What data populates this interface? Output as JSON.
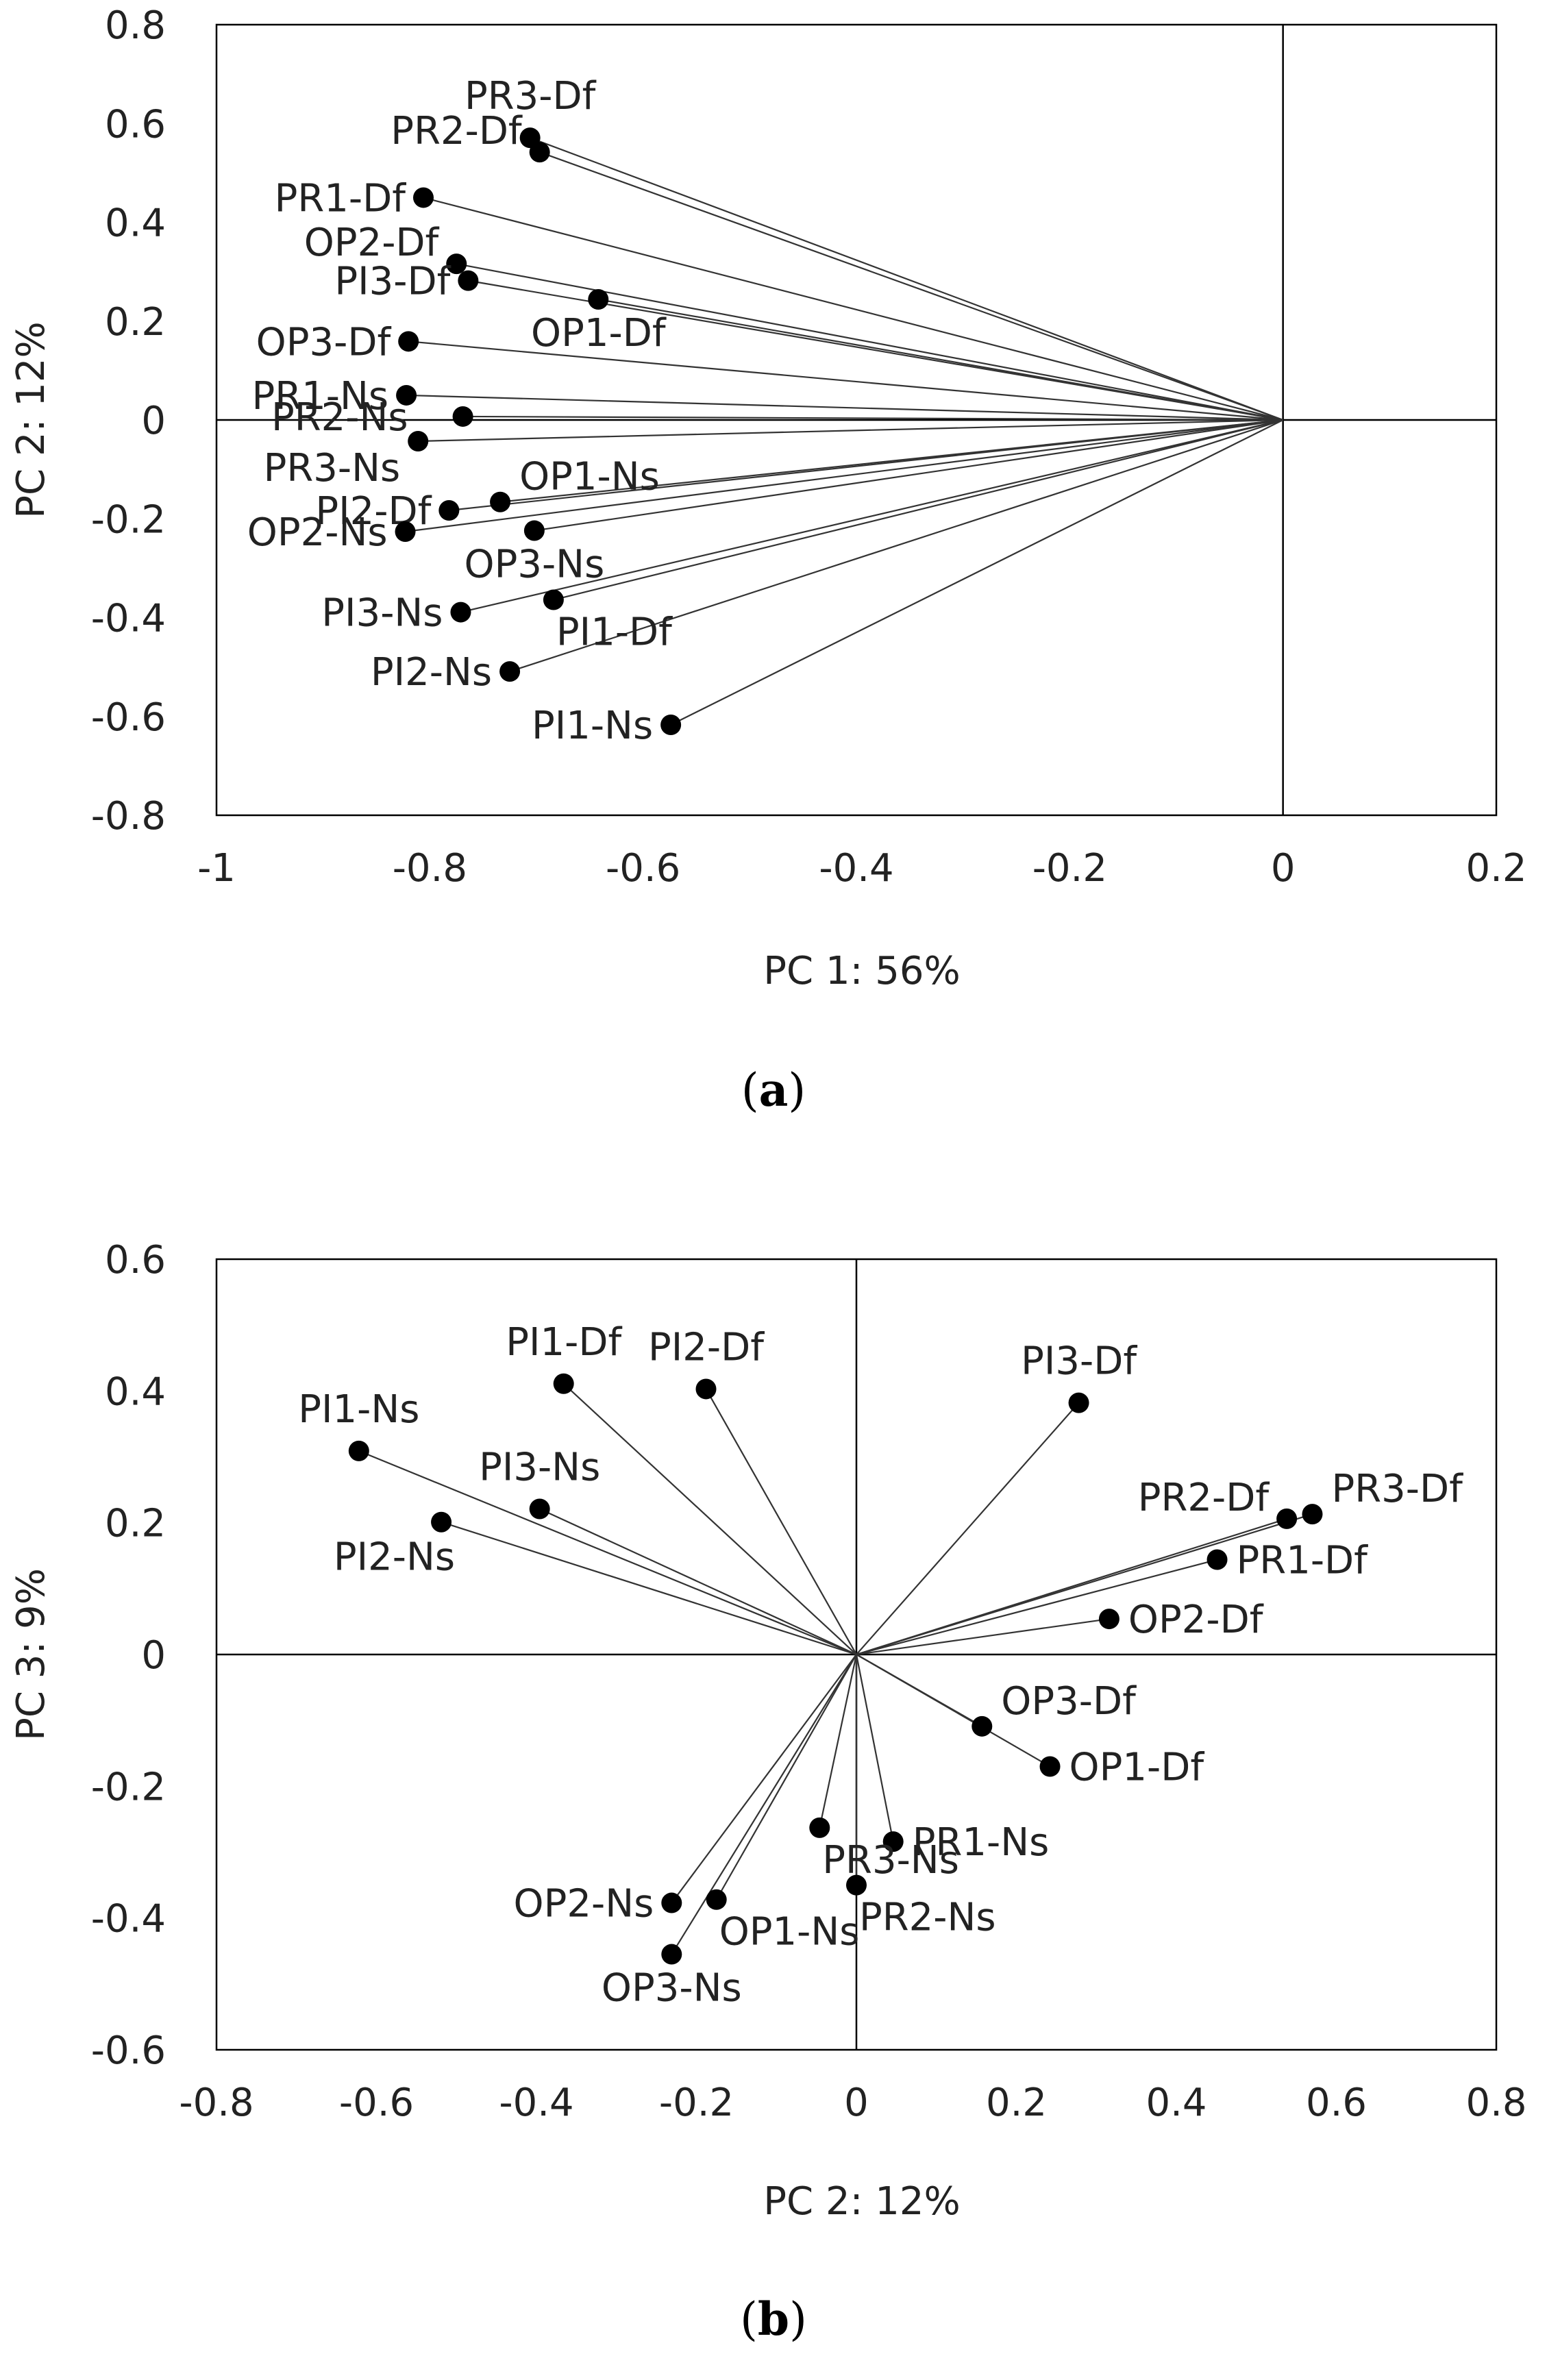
{
  "chart_data": [
    {
      "type": "scatter",
      "panel_label": "a",
      "xlabel": "PC 1: 56%",
      "ylabel": "PC 2: 12%",
      "xlim": [
        -1,
        0.2
      ],
      "ylim": [
        -0.8,
        0.8
      ],
      "xticks": [
        -1,
        -0.8,
        -0.6,
        -0.4,
        -0.2,
        0,
        0.2
      ],
      "xtick_labels": [
        "-1",
        "-0.8",
        "-0.6",
        "-0.4",
        "-0.2",
        "0",
        "0.2"
      ],
      "yticks": [
        0.8,
        0.6,
        0.4,
        0.2,
        0,
        -0.2,
        -0.4,
        -0.6,
        -0.8
      ],
      "ytick_labels": [
        "0.8",
        "0.6",
        "0.4",
        "0.2",
        "0",
        "-0.2",
        "-0.4",
        "-0.6",
        "-0.8"
      ],
      "points": [
        {
          "label": "PR3-Df",
          "x": -0.706,
          "y": 0.571,
          "label_pos": "above"
        },
        {
          "label": "PR2-Df",
          "x": -0.697,
          "y": 0.542,
          "label_pos": "left-up"
        },
        {
          "label": "PR1-Df",
          "x": -0.806,
          "y": 0.45,
          "label_pos": "left"
        },
        {
          "label": "OP2-Df",
          "x": -0.775,
          "y": 0.316,
          "label_pos": "left-up"
        },
        {
          "label": "PI3-Df",
          "x": -0.764,
          "y": 0.282,
          "label_pos": "left"
        },
        {
          "label": "OP1-Df",
          "x": -0.642,
          "y": 0.244,
          "label_pos": "below"
        },
        {
          "label": "OP3-Df",
          "x": -0.82,
          "y": 0.159,
          "label_pos": "left"
        },
        {
          "label": "PR1-Ns",
          "x": -0.822,
          "y": 0.05,
          "label_pos": "left"
        },
        {
          "label": "PR2-Ns",
          "x": -0.769,
          "y": 0.007,
          "label_pos": "left-far"
        },
        {
          "label": "PR3-Ns",
          "x": -0.811,
          "y": -0.043,
          "label_pos": "left-down"
        },
        {
          "label": "OP1-Ns",
          "x": -0.734,
          "y": -0.166,
          "label_pos": "right-up"
        },
        {
          "label": "PI2-Df",
          "x": -0.782,
          "y": -0.183,
          "label_pos": "left"
        },
        {
          "label": "OP2-Ns",
          "x": -0.823,
          "y": -0.226,
          "label_pos": "left"
        },
        {
          "label": "OP3-Ns",
          "x": -0.702,
          "y": -0.224,
          "label_pos": "below"
        },
        {
          "label": "PI1-Df",
          "x": -0.684,
          "y": -0.364,
          "label_pos": "below-right"
        },
        {
          "label": "PI3-Ns",
          "x": -0.771,
          "y": -0.389,
          "label_pos": "left"
        },
        {
          "label": "PI2-Ns",
          "x": -0.725,
          "y": -0.509,
          "label_pos": "left"
        },
        {
          "label": "PI1-Ns",
          "x": -0.574,
          "y": -0.617,
          "label_pos": "left"
        }
      ]
    },
    {
      "type": "scatter",
      "panel_label": "b",
      "xlabel": "PC 2: 12%",
      "ylabel": "PC 3: 9%",
      "xlim": [
        -0.8,
        0.8
      ],
      "ylim": [
        -0.6,
        0.6
      ],
      "xticks": [
        -0.8,
        -0.6,
        -0.4,
        -0.2,
        0,
        0.2,
        0.4,
        0.6,
        0.8
      ],
      "xtick_labels": [
        "-0.8",
        "-0.6",
        "-0.4",
        "-0.2",
        "0",
        "0.2",
        "0.4",
        "0.6",
        "0.8"
      ],
      "yticks": [
        0.6,
        0.4,
        0.2,
        0,
        -0.2,
        -0.4,
        -0.6
      ],
      "ytick_labels": [
        "0.6",
        "0.4",
        "0.2",
        "0",
        "-0.2",
        "-0.4",
        "-0.6"
      ],
      "points": [
        {
          "label": "PI1-Df",
          "x": -0.366,
          "y": 0.411,
          "label_pos": "above"
        },
        {
          "label": "PI2-Df",
          "x": -0.188,
          "y": 0.403,
          "label_pos": "above"
        },
        {
          "label": "PI3-Df",
          "x": 0.278,
          "y": 0.382,
          "label_pos": "above"
        },
        {
          "label": "PI1-Ns",
          "x": -0.622,
          "y": 0.309,
          "label_pos": "above"
        },
        {
          "label": "PI3-Ns",
          "x": -0.396,
          "y": 0.221,
          "label_pos": "above"
        },
        {
          "label": "PI2-Ns",
          "x": -0.519,
          "y": 0.201,
          "label_pos": "below-left"
        },
        {
          "label": "PR3-Df",
          "x": 0.57,
          "y": 0.213,
          "label_pos": "right-up"
        },
        {
          "label": "PR2-Df",
          "x": 0.538,
          "y": 0.206,
          "label_pos": "left-up"
        },
        {
          "label": "PR1-Df",
          "x": 0.451,
          "y": 0.144,
          "label_pos": "right"
        },
        {
          "label": "OP2-Df",
          "x": 0.316,
          "y": 0.054,
          "label_pos": "right"
        },
        {
          "label": "OP3-Df",
          "x": 0.157,
          "y": -0.109,
          "label_pos": "right-up"
        },
        {
          "label": "OP1-Df",
          "x": 0.242,
          "y": -0.17,
          "label_pos": "right"
        },
        {
          "label": "PR1-Ns",
          "x": 0.046,
          "y": -0.284,
          "label_pos": "right"
        },
        {
          "label": "PR3-Ns",
          "x": -0.046,
          "y": -0.263,
          "label_pos": "below-right"
        },
        {
          "label": "PR2-Ns",
          "x": 0.0,
          "y": -0.35,
          "label_pos": "below-right"
        },
        {
          "label": "OP2-Ns",
          "x": -0.231,
          "y": -0.377,
          "label_pos": "left"
        },
        {
          "label": "OP1-Ns",
          "x": -0.175,
          "y": -0.372,
          "label_pos": "below-right"
        },
        {
          "label": "OP3-Ns",
          "x": -0.231,
          "y": -0.455,
          "label_pos": "below"
        }
      ]
    }
  ]
}
